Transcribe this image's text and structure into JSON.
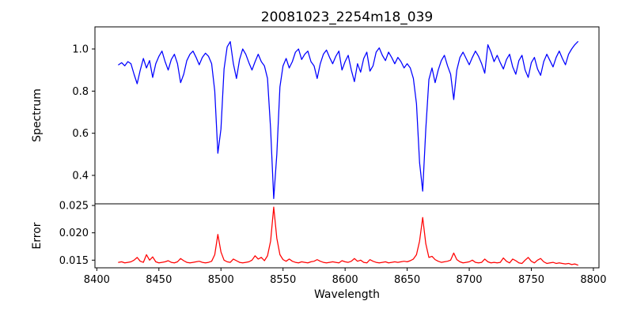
{
  "colors": {
    "background": "#ffffff",
    "axis": "#000000",
    "spectrum_line": "#0000ff",
    "error_line": "#ff0000"
  },
  "chart_data": {
    "type": "line",
    "title": "20081023_2254m18_039",
    "xlabel": "Wavelength",
    "grid": false,
    "legend": "none",
    "xlim": [
      8398.5,
      8804.5
    ],
    "xticks": [
      8400,
      8450,
      8500,
      8550,
      8600,
      8650,
      8700,
      8750,
      8800
    ],
    "xtick_labels": [
      "8400",
      "8450",
      "8500",
      "8550",
      "8600",
      "8650",
      "8700",
      "8750",
      "8800"
    ],
    "x": [
      8417.5,
      8420,
      8422.5,
      8425,
      8427.5,
      8430,
      8432.5,
      8435,
      8437.5,
      8440,
      8442.5,
      8445,
      8447.5,
      8450,
      8452.5,
      8455,
      8457.5,
      8460,
      8462.5,
      8465,
      8467.5,
      8470,
      8472.5,
      8475,
      8477.5,
      8480,
      8482.5,
      8485,
      8487.5,
      8490,
      8492.5,
      8495,
      8497.5,
      8500,
      8502.5,
      8505,
      8507.5,
      8510,
      8512.5,
      8515,
      8517.5,
      8520,
      8522.5,
      8525,
      8527.5,
      8530,
      8532.5,
      8535,
      8537.5,
      8540,
      8542.5,
      8545,
      8547.5,
      8550,
      8552.5,
      8555,
      8557.5,
      8560,
      8562.5,
      8565,
      8567.5,
      8570,
      8572.5,
      8575,
      8577.5,
      8580,
      8582.5,
      8585,
      8587.5,
      8590,
      8592.5,
      8595,
      8597.5,
      8600,
      8602.5,
      8605,
      8607.5,
      8610,
      8612.5,
      8615,
      8617.5,
      8620,
      8622.5,
      8625,
      8627.5,
      8630,
      8632.5,
      8635,
      8637.5,
      8640,
      8642.5,
      8645,
      8647.5,
      8650,
      8652.5,
      8655,
      8657.5,
      8660,
      8662.5,
      8665,
      8667.5,
      8670,
      8672.5,
      8675,
      8677.5,
      8680,
      8682.5,
      8685,
      8687.5,
      8690,
      8692.5,
      8695,
      8697.5,
      8700,
      8702.5,
      8705,
      8707.5,
      8710,
      8712.5,
      8715,
      8717.5,
      8720,
      8722.5,
      8725,
      8727.5,
      8730,
      8732.5,
      8735,
      8737.5,
      8740,
      8742.5,
      8745,
      8747.5,
      8750,
      8752.5,
      8755,
      8757.5,
      8760,
      8762.5,
      8765,
      8767.5,
      8770,
      8772.5,
      8775,
      8777.5,
      8780,
      8782.5,
      8785,
      8787.5
    ],
    "subplots": [
      {
        "ylabel": "Spectrum",
        "ylim": [
          0.265,
          1.105
        ],
        "yticks": [
          0.4,
          0.6,
          0.8,
          1.0
        ],
        "ytick_labels": [
          "0.4",
          "0.6",
          "0.8",
          "1.0"
        ],
        "series": [
          {
            "name": "spectrum",
            "color": "#0000ff",
            "values": [
              0.925,
              0.935,
              0.92,
              0.94,
              0.93,
              0.88,
              0.835,
              0.9,
              0.955,
              0.91,
              0.945,
              0.865,
              0.93,
              0.965,
              0.99,
              0.94,
              0.9,
              0.95,
              0.975,
              0.93,
              0.84,
              0.88,
              0.945,
              0.975,
              0.99,
              0.96,
              0.925,
              0.96,
              0.98,
              0.965,
              0.93,
              0.8,
              0.505,
              0.62,
              0.905,
              1.01,
              1.035,
              0.93,
              0.86,
              0.95,
              1.0,
              0.975,
              0.935,
              0.9,
              0.94,
              0.975,
              0.94,
              0.92,
              0.86,
              0.62,
              0.29,
              0.5,
              0.82,
              0.92,
              0.955,
              0.91,
              0.94,
              0.985,
              1.0,
              0.95,
              0.975,
              0.99,
              0.94,
              0.92,
              0.86,
              0.93,
              0.975,
              0.995,
              0.96,
              0.93,
              0.965,
              0.99,
              0.9,
              0.94,
              0.97,
              0.9,
              0.845,
              0.93,
              0.89,
              0.955,
              0.985,
              0.895,
              0.92,
              0.985,
              1.005,
              0.97,
              0.945,
              0.985,
              0.96,
              0.93,
              0.96,
              0.94,
              0.91,
              0.93,
              0.91,
              0.86,
              0.74,
              0.46,
              0.325,
              0.62,
              0.855,
              0.91,
              0.84,
              0.9,
              0.945,
              0.97,
              0.92,
              0.88,
              0.76,
              0.9,
              0.96,
              0.985,
              0.955,
              0.925,
              0.96,
              0.99,
              0.965,
              0.93,
              0.885,
              1.02,
              0.985,
              0.94,
              0.97,
              0.935,
              0.905,
              0.95,
              0.975,
              0.915,
              0.88,
              0.945,
              0.97,
              0.9,
              0.865,
              0.935,
              0.96,
              0.905,
              0.875,
              0.94,
              0.975,
              0.945,
              0.915,
              0.96,
              0.99,
              0.955,
              0.925,
              0.975,
              1.0,
              1.02,
              1.035
            ]
          }
        ]
      },
      {
        "ylabel": "Error",
        "ylim": [
          0.0136,
          0.0253
        ],
        "yticks": [
          0.015,
          0.02,
          0.025
        ],
        "ytick_labels": [
          "0.015",
          "0.020",
          "0.025"
        ],
        "series": [
          {
            "name": "error",
            "color": "#ff0000",
            "values": [
              0.0146,
              0.0147,
              0.0145,
              0.0146,
              0.0147,
              0.015,
              0.0155,
              0.0148,
              0.0146,
              0.016,
              0.015,
              0.0156,
              0.0147,
              0.0145,
              0.0146,
              0.0147,
              0.0149,
              0.0146,
              0.0145,
              0.0147,
              0.0153,
              0.0149,
              0.0146,
              0.0145,
              0.0146,
              0.0147,
              0.0148,
              0.0146,
              0.0145,
              0.0146,
              0.0148,
              0.016,
              0.0197,
              0.0165,
              0.015,
              0.0147,
              0.0146,
              0.0152,
              0.0149,
              0.0146,
              0.0145,
              0.0146,
              0.0147,
              0.015,
              0.0158,
              0.0152,
              0.0155,
              0.0149,
              0.0158,
              0.0185,
              0.0247,
              0.019,
              0.016,
              0.0151,
              0.0148,
              0.0152,
              0.0148,
              0.0146,
              0.0145,
              0.0147,
              0.0146,
              0.0145,
              0.0147,
              0.0148,
              0.0151,
              0.0148,
              0.0146,
              0.0145,
              0.0146,
              0.0147,
              0.0146,
              0.0145,
              0.0149,
              0.0147,
              0.0146,
              0.0148,
              0.0153,
              0.0148,
              0.015,
              0.0146,
              0.0145,
              0.0151,
              0.0148,
              0.0146,
              0.0145,
              0.0146,
              0.0147,
              0.0145,
              0.0146,
              0.0147,
              0.0146,
              0.0147,
              0.0148,
              0.0147,
              0.0149,
              0.0152,
              0.016,
              0.0185,
              0.0228,
              0.018,
              0.0155,
              0.0157,
              0.0151,
              0.0148,
              0.0146,
              0.0147,
              0.0148,
              0.015,
              0.0163,
              0.0151,
              0.0147,
              0.0145,
              0.0146,
              0.0147,
              0.015,
              0.0146,
              0.0145,
              0.0146,
              0.0152,
              0.0147,
              0.0145,
              0.0146,
              0.0145,
              0.0146,
              0.0154,
              0.0148,
              0.0145,
              0.0152,
              0.0149,
              0.0145,
              0.0144,
              0.015,
              0.0155,
              0.0148,
              0.0145,
              0.015,
              0.0153,
              0.0147,
              0.0144,
              0.0145,
              0.0146,
              0.0144,
              0.0145,
              0.0144,
              0.0143,
              0.0144,
              0.0142,
              0.0143,
              0.0141
            ]
          }
        ]
      }
    ]
  }
}
